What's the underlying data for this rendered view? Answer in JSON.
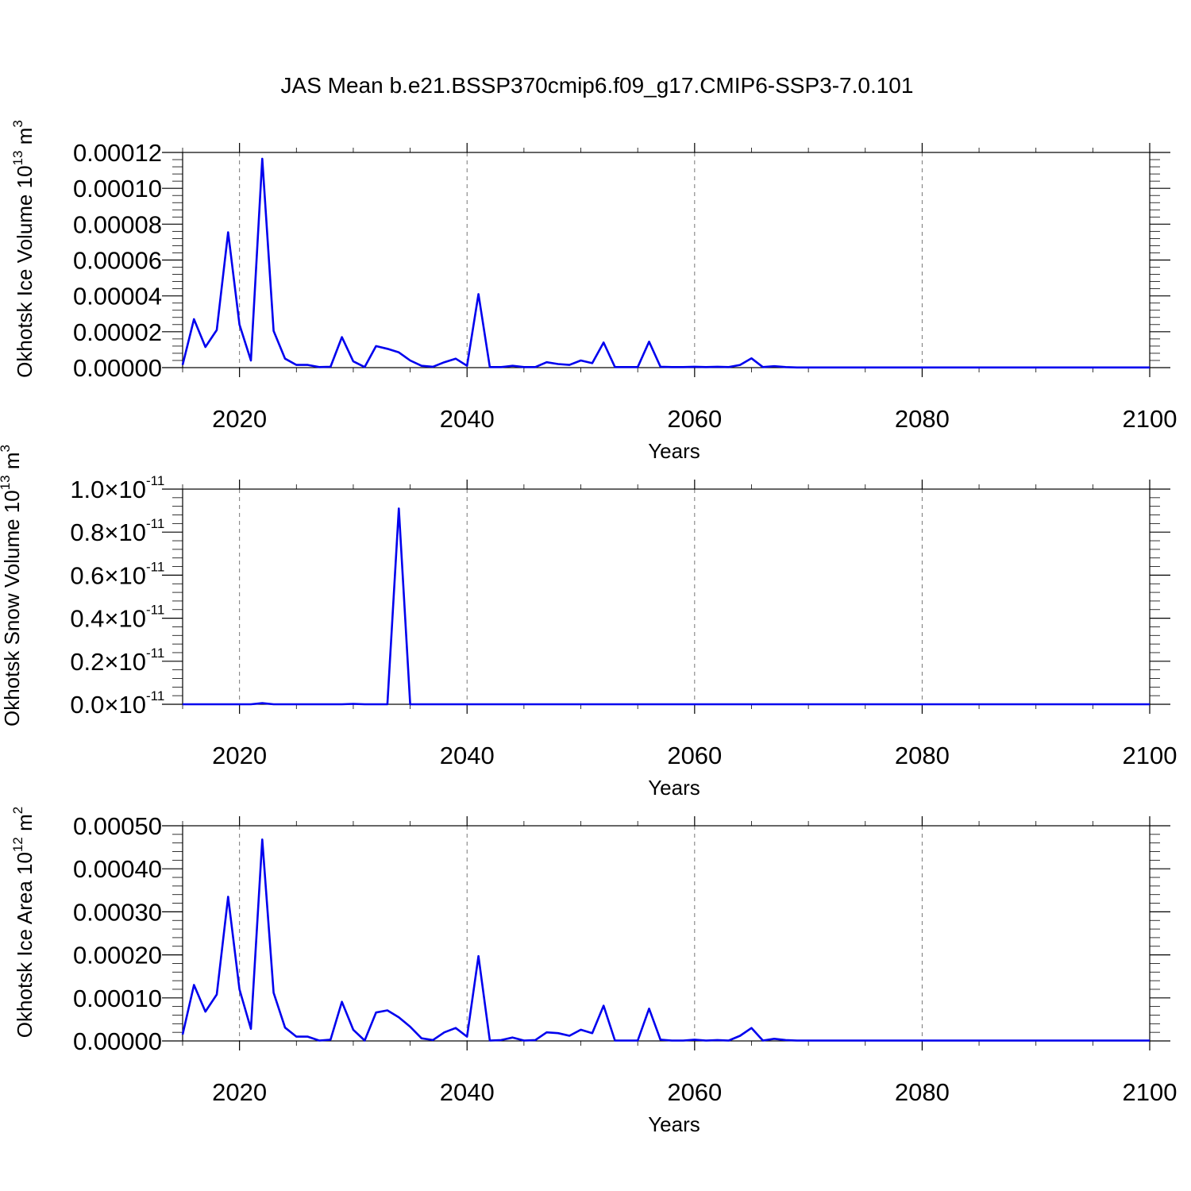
{
  "figure_title": "JAS Mean b.e21.BSSP370cmip6.f09_g17.CMIP6-SSP3-7.0.101",
  "line_color": "#0000ee",
  "chart_data": [
    {
      "type": "line",
      "ylabel": "Okhotsk Ice Volume 10",
      "ylabel_sup": "13",
      "ylabel_unit": " m",
      "ylabel_unit_sup": "3",
      "xlabel": "Years",
      "xlim": [
        2015,
        2100
      ],
      "ylim": [
        0,
        0.00012
      ],
      "grid": "vertical dashed at major x ticks",
      "xticks": [
        2020,
        2040,
        2060,
        2080,
        2100
      ],
      "xtick_labels": [
        "2020",
        "2040",
        "2060",
        "2080",
        "2100"
      ],
      "yticks": [
        0,
        2e-05,
        4e-05,
        6e-05,
        8e-05,
        0.0001,
        0.00012
      ],
      "ytick_labels": [
        "0.00000",
        "0.00002",
        "0.00004",
        "0.00006",
        "0.00008",
        "0.00010",
        "0.00012"
      ],
      "x": [
        2015,
        2016,
        2017,
        2018,
        2019,
        2020,
        2021,
        2022,
        2023,
        2024,
        2025,
        2026,
        2027,
        2028,
        2029,
        2030,
        2031,
        2032,
        2033,
        2034,
        2035,
        2036,
        2037,
        2038,
        2039,
        2040,
        2041,
        2042,
        2043,
        2044,
        2045,
        2046,
        2047,
        2048,
        2049,
        2050,
        2051,
        2052,
        2053,
        2054,
        2055,
        2056,
        2057,
        2058,
        2059,
        2060,
        2061,
        2062,
        2063,
        2064,
        2065,
        2066,
        2067,
        2068,
        2069,
        2070,
        2071,
        2072,
        2073,
        2074,
        2075,
        2076,
        2077,
        2078,
        2079,
        2080,
        2081,
        2082,
        2083,
        2084,
        2085,
        2086,
        2087,
        2088,
        2089,
        2090,
        2091,
        2092,
        2093,
        2094,
        2095,
        2096,
        2097,
        2098,
        2099,
        2100
      ],
      "y": [
        1.5e-06,
        2.7e-05,
        1.15e-05,
        2.1e-05,
        7.55e-05,
        2.4e-05,
        4e-06,
        0.0001165,
        2.05e-05,
        5e-06,
        1.5e-06,
        1.5e-06,
        3e-07,
        5e-07,
        1.7e-05,
        3.5e-06,
        3e-07,
        1.2e-05,
        1.05e-05,
        8.5e-06,
        4e-06,
        1e-06,
        5e-07,
        3e-06,
        5e-06,
        1e-06,
        4.1e-05,
        3e-07,
        3e-07,
        1e-06,
        3e-07,
        3e-07,
        3e-06,
        2e-06,
        1.5e-06,
        4e-06,
        2.5e-06,
        1.4e-05,
        3e-07,
        3e-07,
        3e-07,
        1.45e-05,
        5e-07,
        3e-07,
        3e-07,
        5e-07,
        3e-07,
        5e-07,
        3e-07,
        1.5e-06,
        5.2e-06,
        3e-07,
        8e-07,
        3e-07,
        1e-07,
        1e-07,
        1e-07,
        1e-07,
        1e-07,
        1e-07,
        1e-07,
        1e-07,
        1e-07,
        1e-07,
        1e-07,
        1e-07,
        1e-07,
        1e-07,
        1e-07,
        1e-07,
        1e-07,
        1e-07,
        1e-07,
        1e-07,
        1e-07,
        1e-07,
        1e-07,
        1e-07,
        1e-07,
        1e-07,
        1e-07,
        1e-07,
        1e-07,
        1e-07,
        1e-07,
        1e-07
      ]
    },
    {
      "type": "line",
      "ylabel": "Okhotsk Snow Volume 10",
      "ylabel_sup": "13",
      "ylabel_unit": " m",
      "ylabel_unit_sup": "3",
      "xlabel": "Years",
      "xlim": [
        2015,
        2100
      ],
      "ylim": [
        0,
        1.0
      ],
      "y_scale_note": "values in units of 10^-11",
      "grid": "vertical dashed at major x ticks",
      "xticks": [
        2020,
        2040,
        2060,
        2080,
        2100
      ],
      "xtick_labels": [
        "2020",
        "2040",
        "2060",
        "2080",
        "2100"
      ],
      "yticks": [
        0,
        0.2,
        0.4,
        0.6,
        0.8,
        1.0
      ],
      "ytick_labels": [
        "0.0",
        "0.2",
        "0.4",
        "0.6",
        "0.8",
        "1.0"
      ],
      "ytick_suffix": "×10",
      "ytick_exponent": "-11",
      "x": [
        2015,
        2016,
        2017,
        2018,
        2019,
        2020,
        2021,
        2022,
        2023,
        2024,
        2025,
        2026,
        2027,
        2028,
        2029,
        2030,
        2031,
        2032,
        2033,
        2034,
        2035,
        2036,
        2037,
        2038,
        2039,
        2040,
        2041,
        2042,
        2043,
        2044,
        2045,
        2046,
        2047,
        2048,
        2049,
        2050,
        2051,
        2052,
        2053,
        2054,
        2055,
        2056,
        2057,
        2058,
        2059,
        2060,
        2061,
        2062,
        2063,
        2064,
        2065,
        2066,
        2067,
        2068,
        2069,
        2070,
        2071,
        2072,
        2073,
        2074,
        2075,
        2076,
        2077,
        2078,
        2079,
        2080,
        2081,
        2082,
        2083,
        2084,
        2085,
        2086,
        2087,
        2088,
        2089,
        2090,
        2091,
        2092,
        2093,
        2094,
        2095,
        2096,
        2097,
        2098,
        2099,
        2100
      ],
      "y": [
        0,
        0,
        0,
        0,
        0,
        0,
        0,
        0.005,
        0,
        0,
        0,
        0,
        0,
        0,
        0,
        0.002,
        0,
        0,
        0,
        0.91,
        0,
        0,
        0,
        0,
        0,
        0,
        0,
        0,
        0,
        0,
        0,
        0,
        0,
        0,
        0,
        0,
        0,
        0,
        0,
        0,
        0,
        0,
        0,
        0,
        0,
        0,
        0,
        0,
        0,
        0,
        0,
        0,
        0,
        0,
        0,
        0,
        0,
        0,
        0,
        0,
        0,
        0,
        0,
        0,
        0,
        0,
        0,
        0,
        0,
        0,
        0,
        0,
        0,
        0,
        0,
        0,
        0,
        0,
        0,
        0,
        0,
        0,
        0,
        0,
        0,
        0
      ]
    },
    {
      "type": "line",
      "ylabel": "Okhotsk Ice Area 10",
      "ylabel_sup": "12",
      "ylabel_unit": " m",
      "ylabel_unit_sup": "2",
      "xlabel": "Years",
      "xlim": [
        2015,
        2100
      ],
      "ylim": [
        0,
        0.0005
      ],
      "grid": "vertical dashed at major x ticks",
      "xticks": [
        2020,
        2040,
        2060,
        2080,
        2100
      ],
      "xtick_labels": [
        "2020",
        "2040",
        "2060",
        "2080",
        "2100"
      ],
      "yticks": [
        0,
        0.0001,
        0.0002,
        0.0003,
        0.0004,
        0.0005
      ],
      "ytick_labels": [
        "0.00000",
        "0.00010",
        "0.00020",
        "0.00030",
        "0.00040",
        "0.00050"
      ],
      "x": [
        2015,
        2016,
        2017,
        2018,
        2019,
        2020,
        2021,
        2022,
        2023,
        2024,
        2025,
        2026,
        2027,
        2028,
        2029,
        2030,
        2031,
        2032,
        2033,
        2034,
        2035,
        2036,
        2037,
        2038,
        2039,
        2040,
        2041,
        2042,
        2043,
        2044,
        2045,
        2046,
        2047,
        2048,
        2049,
        2050,
        2051,
        2052,
        2053,
        2054,
        2055,
        2056,
        2057,
        2058,
        2059,
        2060,
        2061,
        2062,
        2063,
        2064,
        2065,
        2066,
        2067,
        2068,
        2069,
        2070,
        2071,
        2072,
        2073,
        2074,
        2075,
        2076,
        2077,
        2078,
        2079,
        2080,
        2081,
        2082,
        2083,
        2084,
        2085,
        2086,
        2087,
        2088,
        2089,
        2090,
        2091,
        2092,
        2093,
        2094,
        2095,
        2096,
        2097,
        2098,
        2099,
        2100
      ],
      "y": [
        1.5e-05,
        0.00013,
        6.8e-05,
        0.000108,
        0.000335,
        0.00012,
        2.8e-05,
        0.000468,
        0.000112,
        3.1e-05,
        1e-05,
        1e-05,
        1e-06,
        3e-06,
        9.1e-05,
        2.6e-05,
        1e-06,
        6.6e-05,
        7.1e-05,
        5.5e-05,
        3.3e-05,
        6e-06,
        2e-06,
        2e-05,
        3e-05,
        1e-05,
        0.000197,
        1e-06,
        2e-06,
        8e-06,
        1e-06,
        2e-06,
        2e-05,
        1.8e-05,
        1.2e-05,
        2.6e-05,
        1.8e-05,
        8.2e-05,
        1e-06,
        1e-06,
        1e-06,
        7.5e-05,
        3e-06,
        1e-06,
        1e-06,
        3e-06,
        1e-06,
        2e-06,
        1e-06,
        1.2e-05,
        3e-05,
        1e-06,
        5e-06,
        2e-06,
        1e-06,
        1e-06,
        1e-06,
        1e-06,
        1e-06,
        1e-06,
        1e-06,
        1e-06,
        1e-06,
        1e-06,
        1e-06,
        1e-06,
        1e-06,
        1e-06,
        1e-06,
        1e-06,
        1e-06,
        1e-06,
        1e-06,
        1e-06,
        1e-06,
        1e-06,
        1e-06,
        1e-06,
        1e-06,
        1e-06,
        1e-06,
        1e-06,
        1e-06,
        1e-06,
        1e-06,
        1e-06
      ]
    }
  ]
}
